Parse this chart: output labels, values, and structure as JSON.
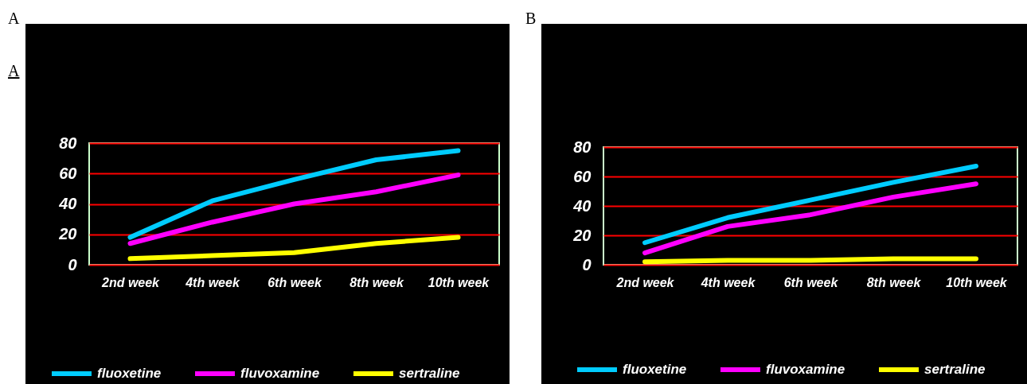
{
  "chart_data": [
    {
      "type": "line",
      "title": "A",
      "annotations": [
        "A"
      ],
      "categories": [
        "2nd week",
        "4th week",
        "6th week",
        "8th week",
        "10th week"
      ],
      "series": [
        {
          "name": "fluoxetine",
          "color": "#00ccff",
          "values": [
            18,
            42,
            56,
            69,
            75
          ]
        },
        {
          "name": "fluvoxamine",
          "color": "#ff00ff",
          "values": [
            14,
            28,
            40,
            48,
            59
          ]
        },
        {
          "name": "sertraline",
          "color": "#ffff00",
          "values": [
            4,
            6,
            8,
            14,
            18
          ]
        }
      ],
      "ylim": [
        0,
        80
      ],
      "yticks": [
        0,
        20,
        40,
        60,
        80
      ],
      "grid": "y",
      "legend": "bottom"
    },
    {
      "type": "line",
      "title": "B",
      "categories": [
        "2nd week",
        "4th week",
        "6th week",
        "8th week",
        "10th week"
      ],
      "series": [
        {
          "name": "fluoxetine",
          "color": "#00ccff",
          "values": [
            15,
            32,
            44,
            56,
            67
          ]
        },
        {
          "name": "fluvoxamine",
          "color": "#ff00ff",
          "values": [
            8,
            26,
            34,
            46,
            55
          ]
        },
        {
          "name": "sertraline",
          "color": "#ffff00",
          "values": [
            2,
            3,
            3,
            4,
            4
          ]
        }
      ],
      "ylim": [
        0,
        80
      ],
      "yticks": [
        0,
        20,
        40,
        60,
        80
      ],
      "grid": "y",
      "legend": "bottom"
    }
  ]
}
